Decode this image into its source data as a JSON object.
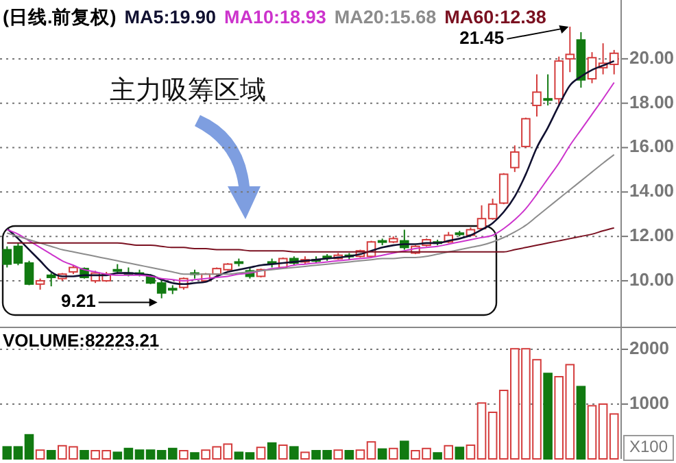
{
  "chart_data": [
    {
      "type": "candlestick",
      "title": "(日线.前复权)",
      "categories": [
        null,
        null,
        null,
        null,
        null,
        null,
        null,
        null,
        null,
        null,
        null,
        null,
        null,
        null,
        null,
        null,
        null,
        null,
        null,
        null,
        null,
        null,
        null,
        null,
        null,
        null,
        null,
        null,
        null,
        null,
        null,
        null,
        null,
        null,
        null,
        null,
        null,
        null,
        null,
        null,
        null,
        null,
        null,
        null,
        null,
        null,
        null,
        null,
        null,
        null,
        null,
        null,
        null,
        null,
        null,
        null
      ],
      "ohlc": [
        [
          11.4,
          11.55,
          10.6,
          10.75
        ],
        [
          11.55,
          11.7,
          10.7,
          10.8
        ],
        [
          10.8,
          10.9,
          9.8,
          9.85
        ],
        [
          9.85,
          10.1,
          9.6,
          10.0
        ],
        [
          10.25,
          10.35,
          9.75,
          10.15
        ],
        [
          10.1,
          10.35,
          10.0,
          10.3
        ],
        [
          10.4,
          10.7,
          10.3,
          10.6
        ],
        [
          10.55,
          10.6,
          10.1,
          10.15
        ],
        [
          10.0,
          10.45,
          9.9,
          10.35
        ],
        [
          10.0,
          10.4,
          9.95,
          10.3
        ],
        [
          10.5,
          10.75,
          10.3,
          10.45
        ],
        [
          10.35,
          10.6,
          10.2,
          10.3
        ],
        [
          10.35,
          10.5,
          10.2,
          10.3
        ],
        [
          10.2,
          10.3,
          9.85,
          9.9
        ],
        [
          9.9,
          10.0,
          9.21,
          9.45
        ],
        [
          9.65,
          9.8,
          9.4,
          9.6
        ],
        [
          9.7,
          10.15,
          9.6,
          10.1
        ],
        [
          10.35,
          10.5,
          10.1,
          10.3
        ],
        [
          10.0,
          10.35,
          9.95,
          10.3
        ],
        [
          10.3,
          10.6,
          10.25,
          10.55
        ],
        [
          10.5,
          10.8,
          10.45,
          10.75
        ],
        [
          10.85,
          11.0,
          10.65,
          10.8
        ],
        [
          10.45,
          10.6,
          10.1,
          10.2
        ],
        [
          10.2,
          10.55,
          10.15,
          10.5
        ],
        [
          10.85,
          11.0,
          10.6,
          10.8
        ],
        [
          10.6,
          11.05,
          10.55,
          11.0
        ],
        [
          11.0,
          11.1,
          10.7,
          10.8
        ],
        [
          10.85,
          11.1,
          10.75,
          10.95
        ],
        [
          10.95,
          11.1,
          10.8,
          10.9
        ],
        [
          11.1,
          11.2,
          10.9,
          11.05
        ],
        [
          11.0,
          11.25,
          10.95,
          11.15
        ],
        [
          11.15,
          11.25,
          10.95,
          11.1
        ],
        [
          11.1,
          11.4,
          11.05,
          11.35
        ],
        [
          11.1,
          11.8,
          11.05,
          11.75
        ],
        [
          11.8,
          11.9,
          11.6,
          11.75
        ],
        [
          11.75,
          12.0,
          11.7,
          11.9
        ],
        [
          11.8,
          12.3,
          11.4,
          11.5
        ],
        [
          11.25,
          11.6,
          11.2,
          11.55
        ],
        [
          11.6,
          11.9,
          11.55,
          11.85
        ],
        [
          11.75,
          11.85,
          11.6,
          11.7
        ],
        [
          11.75,
          12.2,
          11.7,
          12.05
        ],
        [
          12.15,
          12.25,
          12.0,
          12.1
        ],
        [
          12.05,
          12.4,
          12.0,
          12.3
        ],
        [
          12.35,
          13.4,
          12.3,
          12.8
        ],
        [
          12.8,
          13.7,
          12.75,
          13.45
        ],
        [
          13.5,
          14.85,
          13.45,
          14.8
        ],
        [
          15.1,
          16.1,
          14.9,
          15.8
        ],
        [
          16.05,
          17.35,
          16.0,
          17.3
        ],
        [
          17.9,
          19.3,
          17.4,
          18.5
        ],
        [
          18.2,
          19.3,
          17.9,
          18.15
        ],
        [
          18.2,
          20.1,
          17.9,
          19.9
        ],
        [
          20.0,
          21.45,
          19.4,
          20.2
        ],
        [
          20.85,
          21.2,
          18.7,
          19.05
        ],
        [
          19.1,
          20.3,
          18.9,
          20.05
        ],
        [
          19.6,
          20.7,
          19.3,
          19.8
        ],
        [
          19.75,
          20.4,
          19.3,
          20.25
        ]
      ],
      "colors": [
        "#117a11",
        "#117a11",
        "#117a11",
        "#d43c3c",
        "#117a11",
        "#d43c3c",
        "#d43c3c",
        "#117a11",
        "#d43c3c",
        "#d43c3c",
        "#117a11",
        "#117a11",
        "#117a11",
        "#117a11",
        "#117a11",
        "#117a11",
        "#d43c3c",
        "#117a11",
        "#d43c3c",
        "#d43c3c",
        "#d43c3c",
        "#117a11",
        "#117a11",
        "#d43c3c",
        "#117a11",
        "#d43c3c",
        "#117a11",
        "#d43c3c",
        "#117a11",
        "#117a11",
        "#d43c3c",
        "#117a11",
        "#d43c3c",
        "#d43c3c",
        "#117a11",
        "#d43c3c",
        "#117a11",
        "#d43c3c",
        "#d43c3c",
        "#117a11",
        "#d43c3c",
        "#117a11",
        "#d43c3c",
        "#d43c3c",
        "#d43c3c",
        "#d43c3c",
        "#d43c3c",
        "#d43c3c",
        "#d43c3c",
        "#117a11",
        "#d43c3c",
        "#d43c3c",
        "#117a11",
        "#d43c3c",
        "#d43c3c",
        "#d43c3c"
      ],
      "series": [
        {
          "name": "MA5:19.90",
          "type": "line",
          "color": "#101030",
          "values": [
            12.35,
            11.9,
            11.4,
            10.9,
            10.4,
            10.2,
            10.2,
            10.25,
            10.25,
            10.25,
            10.35,
            10.35,
            10.3,
            10.25,
            10.05,
            9.9,
            9.85,
            9.9,
            9.95,
            10.2,
            10.4,
            10.5,
            10.6,
            10.7,
            10.75,
            10.8,
            10.85,
            10.9,
            10.95,
            11.0,
            11.05,
            11.1,
            11.2,
            11.35,
            11.5,
            11.6,
            11.65,
            11.65,
            11.7,
            11.7,
            11.8,
            11.9,
            12.05,
            12.3,
            12.6,
            13.1,
            13.8,
            14.8,
            16.0,
            16.9,
            17.9,
            18.8,
            19.2,
            19.5,
            19.7,
            19.9
          ]
        },
        {
          "name": "MA10:18.93",
          "type": "line",
          "color": "#cc33cc",
          "values": [
            12.3,
            12.1,
            11.8,
            11.5,
            11.2,
            10.9,
            10.7,
            10.5,
            10.4,
            10.3,
            10.25,
            10.25,
            10.25,
            10.2,
            10.1,
            10.05,
            10.0,
            10.05,
            10.1,
            10.15,
            10.2,
            10.3,
            10.35,
            10.45,
            10.55,
            10.6,
            10.7,
            10.75,
            10.8,
            10.85,
            10.9,
            10.95,
            11.0,
            11.05,
            11.15,
            11.25,
            11.35,
            11.45,
            11.5,
            11.55,
            11.65,
            11.75,
            11.85,
            11.95,
            12.05,
            12.35,
            12.75,
            13.25,
            13.9,
            14.6,
            15.3,
            16.1,
            16.8,
            17.5,
            18.2,
            18.93
          ]
        },
        {
          "name": "MA20:15.68",
          "type": "line",
          "color": "#8c8c8c",
          "values": [
            12.15,
            12.0,
            11.85,
            11.7,
            11.55,
            11.4,
            11.3,
            11.2,
            11.1,
            11.0,
            10.9,
            10.8,
            10.7,
            10.6,
            10.5,
            10.4,
            10.3,
            10.3,
            10.3,
            10.3,
            10.3,
            10.35,
            10.4,
            10.45,
            10.5,
            10.55,
            10.6,
            10.65,
            10.7,
            10.75,
            10.8,
            10.85,
            10.9,
            10.95,
            11.0,
            11.0,
            11.05,
            11.05,
            11.1,
            11.2,
            11.3,
            11.4,
            11.5,
            11.6,
            11.75,
            11.95,
            12.2,
            12.5,
            12.9,
            13.3,
            13.7,
            14.1,
            14.5,
            14.9,
            15.3,
            15.68
          ]
        },
        {
          "name": "MA60:12.38",
          "type": "line",
          "color": "#7a1020",
          "values": [
            11.7,
            11.7,
            11.7,
            11.7,
            11.7,
            11.7,
            11.7,
            11.7,
            11.7,
            11.7,
            11.7,
            11.65,
            11.6,
            11.6,
            11.55,
            11.5,
            11.5,
            11.45,
            11.45,
            11.4,
            11.4,
            11.4,
            11.35,
            11.35,
            11.35,
            11.35,
            11.3,
            11.3,
            11.3,
            11.3,
            11.3,
            11.3,
            11.3,
            11.3,
            11.3,
            11.3,
            11.3,
            11.3,
            11.3,
            11.3,
            11.3,
            11.3,
            11.3,
            11.3,
            11.3,
            11.3,
            11.4,
            11.5,
            11.6,
            11.7,
            11.8,
            11.9,
            12.0,
            12.1,
            12.25,
            12.38
          ]
        }
      ],
      "ylim": [
        7.9,
        22.65
      ],
      "yticks": [
        {
          "value": 10,
          "label": "10.00"
        },
        {
          "value": 12,
          "label": "12.00"
        },
        {
          "value": 14,
          "label": "14.00"
        },
        {
          "value": 16,
          "label": "16.00"
        },
        {
          "value": 18,
          "label": "18.00"
        },
        {
          "value": 20,
          "label": "20.00"
        }
      ],
      "grid": "y",
      "annotations": [
        "主力吸筹区域",
        "9.21",
        "21.45"
      ]
    },
    {
      "type": "bar",
      "title": "VOLUME:82223.21",
      "categories": [
        null,
        null,
        null,
        null,
        null,
        null,
        null,
        null,
        null,
        null,
        null,
        null,
        null,
        null,
        null,
        null,
        null,
        null,
        null,
        null,
        null,
        null,
        null,
        null,
        null,
        null,
        null,
        null,
        null,
        null,
        null,
        null,
        null,
        null,
        null,
        null,
        null,
        null,
        null,
        null,
        null,
        null,
        null,
        null,
        null,
        null,
        null,
        null,
        null,
        null,
        null,
        null,
        null,
        null,
        null,
        null
      ],
      "values": [
        220,
        220,
        440,
        160,
        150,
        240,
        220,
        150,
        150,
        150,
        120,
        190,
        160,
        160,
        150,
        190,
        150,
        110,
        160,
        220,
        270,
        120,
        110,
        210,
        290,
        250,
        220,
        120,
        150,
        150,
        160,
        150,
        160,
        310,
        180,
        190,
        320,
        150,
        190,
        110,
        240,
        210,
        250,
        1020,
        850,
        1250,
        2010,
        2010,
        1810,
        1560,
        1500,
        1720,
        1320,
        970,
        1000,
        820
      ],
      "colors": [
        "#117a11",
        "#117a11",
        "#117a11",
        "#d43c3c",
        "#117a11",
        "#d43c3c",
        "#d43c3c",
        "#117a11",
        "#d43c3c",
        "#d43c3c",
        "#117a11",
        "#117a11",
        "#117a11",
        "#117a11",
        "#117a11",
        "#117a11",
        "#d43c3c",
        "#117a11",
        "#d43c3c",
        "#d43c3c",
        "#d43c3c",
        "#117a11",
        "#117a11",
        "#d43c3c",
        "#117a11",
        "#d43c3c",
        "#117a11",
        "#d43c3c",
        "#117a11",
        "#117a11",
        "#d43c3c",
        "#117a11",
        "#d43c3c",
        "#d43c3c",
        "#117a11",
        "#d43c3c",
        "#117a11",
        "#d43c3c",
        "#d43c3c",
        "#117a11",
        "#d43c3c",
        "#117a11",
        "#d43c3c",
        "#d43c3c",
        "#d43c3c",
        "#d43c3c",
        "#d43c3c",
        "#d43c3c",
        "#d43c3c",
        "#117a11",
        "#d43c3c",
        "#d43c3c",
        "#117a11",
        "#d43c3c",
        "#d43c3c",
        "#d43c3c"
      ],
      "ylim": [
        0,
        2400
      ],
      "yticks": [
        1000,
        2000
      ],
      "grid": "y",
      "annotations": [
        "X100"
      ]
    }
  ]
}
